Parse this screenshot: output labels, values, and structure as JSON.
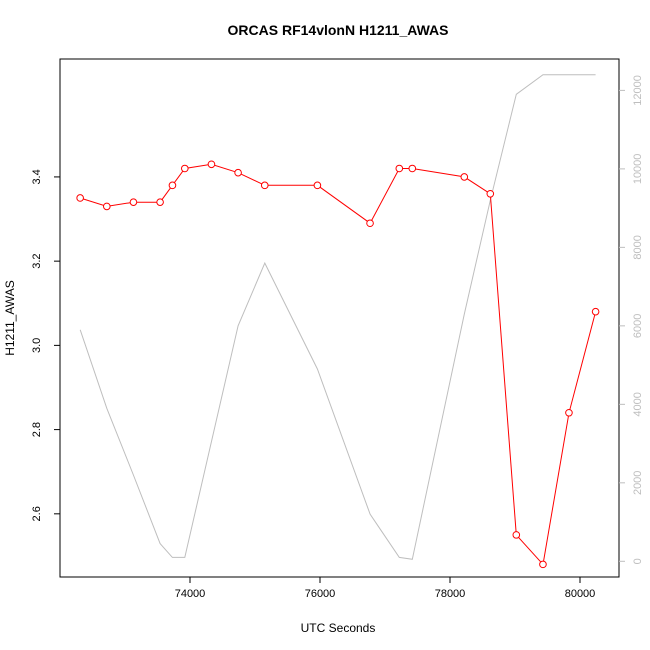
{
  "chart_data": {
    "type": "line",
    "title": "ORCAS RF14vlonN H1211_AWAS",
    "xlabel": "UTC Seconds",
    "ylabel": "H1211_AWAS",
    "xlim": [
      72000,
      80600
    ],
    "ylim": [
      2.45,
      3.68
    ],
    "y2lim": [
      -400,
      12800
    ],
    "x_ticks": [
      74000,
      76000,
      78000,
      80000
    ],
    "y_ticks": [
      2.6,
      2.8,
      3.0,
      3.2,
      3.4
    ],
    "y2_ticks": [
      0,
      2000,
      4000,
      6000,
      8000,
      10000,
      12000
    ],
    "series": [
      {
        "axis": "left",
        "color": "#ff0000",
        "markers": "open-circle",
        "points": [
          [
            72310,
            3.35
          ],
          [
            72720,
            3.33
          ],
          [
            73130,
            3.34
          ],
          [
            73540,
            3.34
          ],
          [
            73730,
            3.38
          ],
          [
            73920,
            3.42
          ],
          [
            74330,
            3.43
          ],
          [
            74740,
            3.41
          ],
          [
            75150,
            3.38
          ],
          [
            75960,
            3.38
          ],
          [
            76770,
            3.29
          ],
          [
            77220,
            3.42
          ],
          [
            77420,
            3.42
          ],
          [
            78220,
            3.4
          ],
          [
            78620,
            3.36
          ],
          [
            79020,
            2.55
          ],
          [
            79430,
            2.48
          ],
          [
            79830,
            2.84
          ],
          [
            80240,
            3.08
          ]
        ]
      },
      {
        "axis": "right",
        "color": "#bebebe",
        "markers": "none",
        "points": [
          [
            72310,
            5900
          ],
          [
            72720,
            3900
          ],
          [
            73130,
            2200
          ],
          [
            73540,
            450
          ],
          [
            73730,
            100
          ],
          [
            73920,
            100
          ],
          [
            74740,
            6000
          ],
          [
            75150,
            7600
          ],
          [
            75960,
            4900
          ],
          [
            76770,
            1200
          ],
          [
            77220,
            100
          ],
          [
            77420,
            50
          ],
          [
            78220,
            6300
          ],
          [
            78620,
            9200
          ],
          [
            79020,
            11900
          ],
          [
            79430,
            12400
          ],
          [
            79830,
            12400
          ],
          [
            80240,
            12400
          ]
        ]
      }
    ]
  }
}
